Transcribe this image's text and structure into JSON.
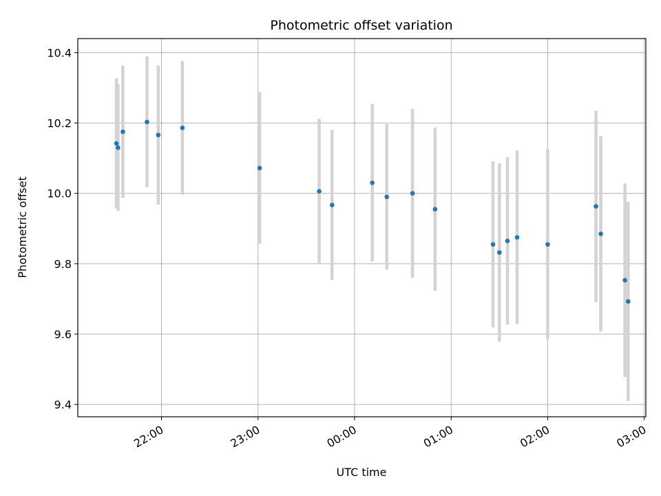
{
  "chart_data": {
    "type": "scatter",
    "title": "Photometric offset variation",
    "xlabel": "UTC time",
    "ylabel": "Photometric offset",
    "x_axis_type": "time",
    "x_start_time": "21:08",
    "x_end_time": "03:01",
    "xlim_minutes_from_2200": [
      -52,
      301
    ],
    "ylim": [
      9.365,
      10.44
    ],
    "x_ticks": [
      "22:00",
      "23:00",
      "00:00",
      "01:00",
      "02:00",
      "03:00"
    ],
    "y_ticks": [
      "9.4",
      "9.6",
      "9.8",
      "10.0",
      "10.2",
      "10.4"
    ],
    "grid": true,
    "colors": {
      "marker": "#1f77b4",
      "errorbar": "#d3d3d3",
      "grid": "#b0b0b0"
    },
    "points": [
      {
        "x": "21:32",
        "y": 10.142,
        "err": 0.185
      },
      {
        "x": "21:33",
        "y": 10.13,
        "err": 0.18
      },
      {
        "x": "21:36",
        "y": 10.175,
        "err": 0.188
      },
      {
        "x": "21:51",
        "y": 10.203,
        "err": 0.186
      },
      {
        "x": "21:58",
        "y": 10.166,
        "err": 0.198
      },
      {
        "x": "22:13",
        "y": 10.186,
        "err": 0.19
      },
      {
        "x": "23:01",
        "y": 10.072,
        "err": 0.215
      },
      {
        "x": "23:38",
        "y": 10.006,
        "err": 0.206
      },
      {
        "x": "23:46",
        "y": 9.967,
        "err": 0.213
      },
      {
        "x": "00:11",
        "y": 10.03,
        "err": 0.224
      },
      {
        "x": "00:20",
        "y": 9.99,
        "err": 0.207
      },
      {
        "x": "00:36",
        "y": 10.0,
        "err": 0.24
      },
      {
        "x": "00:50",
        "y": 9.955,
        "err": 0.232
      },
      {
        "x": "01:26",
        "y": 9.855,
        "err": 0.236
      },
      {
        "x": "01:30",
        "y": 9.832,
        "err": 0.253
      },
      {
        "x": "01:35",
        "y": 9.865,
        "err": 0.238
      },
      {
        "x": "01:41",
        "y": 9.875,
        "err": 0.247
      },
      {
        "x": "02:00",
        "y": 9.855,
        "err": 0.27
      },
      {
        "x": "02:30",
        "y": 9.963,
        "err": 0.272
      },
      {
        "x": "02:33",
        "y": 9.885,
        "err": 0.278
      },
      {
        "x": "02:48",
        "y": 9.753,
        "err": 0.275
      },
      {
        "x": "02:50",
        "y": 9.693,
        "err": 0.283
      }
    ]
  }
}
